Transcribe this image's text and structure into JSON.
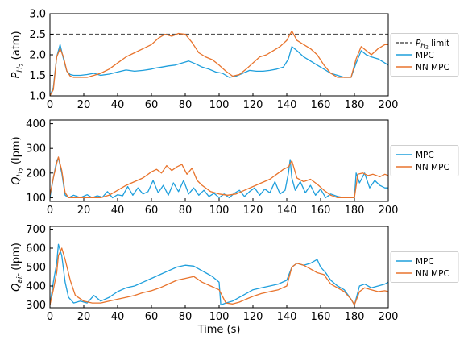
{
  "chart_data": [
    {
      "type": "line",
      "ylabel_main": "P",
      "ylabel_sub": "H",
      "ylabel_sub2": "2",
      "ylabel_unit": " (atm)",
      "xlim": [
        0,
        200
      ],
      "ylim": [
        1.0,
        3.0
      ],
      "xticks": [
        "0",
        "20",
        "40",
        "60",
        "80",
        "100",
        "120",
        "140",
        "160",
        "180",
        "200"
      ],
      "yticks": [
        "1.0",
        "1.5",
        "2.0",
        "2.5",
        "3.0"
      ],
      "legend_position": "right",
      "limit": {
        "name_main": "P",
        "name_sub": "H",
        "name_sub2": "2",
        "name_rest": " limit",
        "value": 2.5,
        "color": "#555555"
      },
      "series": [
        {
          "name": "MPC",
          "color": "#1f9fdc",
          "x": [
            0,
            2,
            4,
            6,
            8,
            10,
            12,
            14,
            18,
            22,
            26,
            30,
            35,
            40,
            45,
            50,
            55,
            60,
            63,
            66,
            70,
            74,
            78,
            82,
            86,
            90,
            94,
            98,
            102,
            106,
            110,
            114,
            118,
            122,
            126,
            130,
            134,
            138,
            141,
            143,
            146,
            150,
            154,
            158,
            162,
            166,
            170,
            174,
            178,
            181,
            184,
            187,
            190,
            194,
            198,
            200
          ],
          "y": [
            1.0,
            1.2,
            1.95,
            2.25,
            1.9,
            1.6,
            1.52,
            1.5,
            1.5,
            1.52,
            1.55,
            1.5,
            1.53,
            1.58,
            1.63,
            1.6,
            1.62,
            1.65,
            1.68,
            1.7,
            1.73,
            1.75,
            1.8,
            1.85,
            1.78,
            1.7,
            1.65,
            1.58,
            1.55,
            1.45,
            1.48,
            1.55,
            1.62,
            1.6,
            1.6,
            1.62,
            1.65,
            1.7,
            1.9,
            2.2,
            2.1,
            1.95,
            1.85,
            1.75,
            1.65,
            1.55,
            1.5,
            1.45,
            1.45,
            1.8,
            2.1,
            2.0,
            1.95,
            1.9,
            1.8,
            1.75
          ]
        },
        {
          "name": "NN MPC",
          "color": "#e8742d",
          "x": [
            0,
            2,
            4,
            6,
            8,
            10,
            12,
            14,
            18,
            22,
            26,
            30,
            35,
            40,
            45,
            50,
            55,
            60,
            64,
            68,
            72,
            76,
            80,
            84,
            88,
            92,
            96,
            100,
            104,
            108,
            112,
            116,
            120,
            124,
            128,
            132,
            136,
            140,
            143,
            146,
            150,
            154,
            158,
            162,
            166,
            170,
            174,
            178,
            181,
            184,
            187,
            190,
            194,
            198,
            200
          ],
          "y": [
            1.0,
            1.15,
            1.95,
            2.15,
            1.95,
            1.6,
            1.48,
            1.45,
            1.45,
            1.45,
            1.5,
            1.55,
            1.65,
            1.8,
            1.95,
            2.05,
            2.15,
            2.25,
            2.4,
            2.5,
            2.45,
            2.52,
            2.5,
            2.3,
            2.05,
            1.95,
            1.88,
            1.75,
            1.6,
            1.48,
            1.52,
            1.65,
            1.8,
            1.95,
            2.0,
            2.1,
            2.2,
            2.35,
            2.58,
            2.35,
            2.25,
            2.15,
            2.0,
            1.75,
            1.55,
            1.45,
            1.45,
            1.45,
            1.9,
            2.2,
            2.1,
            2.0,
            2.15,
            2.25,
            2.25
          ]
        }
      ]
    },
    {
      "type": "line",
      "ylabel_main": "Q",
      "ylabel_sub": "H",
      "ylabel_sub2": "2",
      "ylabel_unit": " (lpm)",
      "xlim": [
        0,
        200
      ],
      "ylim": [
        85,
        415
      ],
      "xticks": [
        "0",
        "20",
        "40",
        "60",
        "80",
        "100",
        "120",
        "140",
        "160",
        "180",
        "200"
      ],
      "yticks": [
        "100",
        "200",
        "300",
        "400"
      ],
      "legend_position": "right",
      "series": [
        {
          "name": "MPC",
          "color": "#1f9fdc",
          "x": [
            0,
            2,
            4,
            5,
            7,
            9,
            11,
            14,
            18,
            22,
            25,
            28,
            31,
            34,
            37,
            40,
            43,
            46,
            49,
            52,
            55,
            58,
            61,
            64,
            67,
            70,
            73,
            76,
            79,
            82,
            85,
            88,
            91,
            94,
            97,
            100,
            103,
            106,
            109,
            112,
            115,
            118,
            121,
            124,
            127,
            130,
            133,
            136,
            139,
            141,
            142,
            143,
            145,
            148,
            151,
            154,
            157,
            160,
            163,
            166,
            170,
            174,
            178,
            180,
            181,
            183,
            186,
            189,
            192,
            195,
            198,
            200
          ],
          "y": [
            100,
            180,
            250,
            262,
            200,
            110,
            100,
            110,
            100,
            112,
            100,
            108,
            102,
            125,
            100,
            112,
            108,
            145,
            110,
            140,
            115,
            125,
            170,
            120,
            150,
            110,
            160,
            125,
            170,
            115,
            140,
            110,
            130,
            105,
            118,
            100,
            115,
            100,
            118,
            130,
            105,
            125,
            140,
            110,
            135,
            120,
            165,
            115,
            130,
            200,
            255,
            180,
            130,
            165,
            120,
            150,
            110,
            135,
            100,
            115,
            105,
            100,
            100,
            100,
            200,
            160,
            200,
            140,
            170,
            150,
            140,
            140
          ]
        },
        {
          "name": "NN MPC",
          "color": "#e8742d",
          "x": [
            0,
            2,
            4,
            5,
            7,
            9,
            11,
            14,
            20,
            26,
            30,
            35,
            40,
            45,
            50,
            55,
            60,
            63,
            66,
            69,
            72,
            75,
            78,
            81,
            84,
            87,
            90,
            95,
            100,
            105,
            110,
            115,
            120,
            125,
            130,
            135,
            138,
            141,
            143,
            146,
            150,
            154,
            158,
            162,
            166,
            170,
            174,
            178,
            180,
            182,
            185,
            188,
            191,
            195,
            198,
            200
          ],
          "y": [
            110,
            180,
            240,
            265,
            210,
            120,
            100,
            100,
            100,
            100,
            100,
            110,
            130,
            150,
            165,
            180,
            205,
            215,
            200,
            230,
            210,
            225,
            235,
            195,
            220,
            170,
            150,
            125,
            115,
            110,
            115,
            130,
            145,
            160,
            175,
            200,
            215,
            225,
            250,
            180,
            165,
            175,
            155,
            130,
            110,
            100,
            100,
            100,
            100,
            195,
            200,
            190,
            195,
            185,
            195,
            190
          ]
        }
      ]
    },
    {
      "type": "line",
      "ylabel_main": "Q",
      "ylabel_sub": "air",
      "ylabel_sub2": "",
      "ylabel_unit": " (lpm)",
      "xlim": [
        0,
        200
      ],
      "ylim": [
        285,
        715
      ],
      "xticks": [
        "0",
        "20",
        "40",
        "60",
        "80",
        "100",
        "120",
        "140",
        "160",
        "180",
        "200"
      ],
      "yticks": [
        "300",
        "400",
        "500",
        "600",
        "700"
      ],
      "xlabel": "Time (s)",
      "legend_position": "right",
      "series": [
        {
          "name": "MPC",
          "color": "#1f9fdc",
          "x": [
            0,
            2,
            4,
            5,
            7,
            9,
            11,
            14,
            18,
            22,
            26,
            30,
            35,
            40,
            45,
            50,
            55,
            60,
            65,
            70,
            75,
            80,
            85,
            88,
            92,
            96,
            100,
            101,
            104,
            108,
            112,
            116,
            120,
            125,
            130,
            135,
            140,
            143,
            146,
            150,
            154,
            158,
            160,
            163,
            166,
            170,
            174,
            178,
            180,
            183,
            186,
            190,
            194,
            198,
            200
          ],
          "y": [
            300,
            420,
            520,
            620,
            560,
            420,
            340,
            310,
            320,
            310,
            350,
            320,
            340,
            370,
            390,
            400,
            420,
            440,
            460,
            480,
            500,
            510,
            505,
            490,
            470,
            450,
            420,
            300,
            310,
            320,
            340,
            360,
            380,
            390,
            400,
            410,
            430,
            500,
            520,
            510,
            520,
            540,
            500,
            470,
            430,
            400,
            380,
            330,
            300,
            400,
            410,
            390,
            400,
            410,
            420
          ]
        },
        {
          "name": "NN MPC",
          "color": "#e8742d",
          "x": [
            0,
            2,
            4,
            5,
            7,
            9,
            12,
            15,
            20,
            25,
            30,
            35,
            40,
            45,
            50,
            55,
            60,
            65,
            70,
            75,
            80,
            85,
            90,
            95,
            100,
            104,
            108,
            112,
            116,
            120,
            125,
            130,
            135,
            140,
            143,
            146,
            150,
            154,
            158,
            162,
            166,
            170,
            174,
            178,
            180,
            183,
            186,
            190,
            194,
            198,
            200
          ],
          "y": [
            300,
            380,
            470,
            560,
            600,
            540,
            430,
            350,
            320,
            310,
            310,
            320,
            330,
            340,
            350,
            365,
            375,
            390,
            410,
            430,
            440,
            450,
            420,
            400,
            380,
            310,
            305,
            315,
            330,
            345,
            360,
            370,
            380,
            400,
            500,
            520,
            510,
            490,
            470,
            460,
            410,
            390,
            370,
            330,
            300,
            370,
            390,
            380,
            370,
            375,
            370
          ]
        }
      ]
    }
  ]
}
